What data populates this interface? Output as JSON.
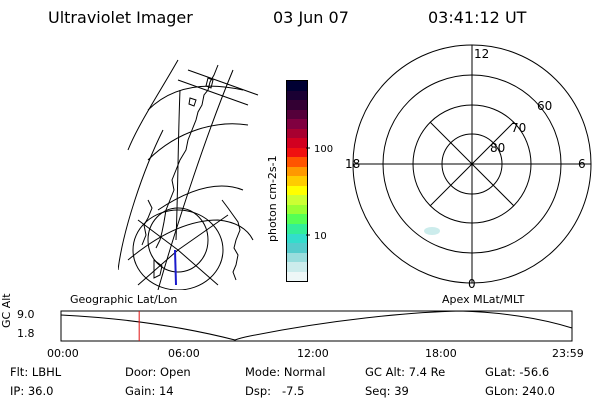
{
  "header": {
    "instrument": "Ultraviolet Imager",
    "date": "03 Jun 07",
    "time": "03:41:12 UT"
  },
  "colorbar": {
    "unit_label": "photon cm-2s-1",
    "ticks": [
      "100",
      "10"
    ],
    "colors": [
      "#000033",
      "#1a0033",
      "#330033",
      "#55003a",
      "#800040",
      "#a80030",
      "#d20020",
      "#f01010",
      "#ff5500",
      "#ff9900",
      "#ffcc00",
      "#ffff00",
      "#ccff33",
      "#99ff33",
      "#55ff55",
      "#33ee99",
      "#33ddcc",
      "#55cccc",
      "#99dddd",
      "#ccecec",
      "#eef7f7"
    ]
  },
  "polar": {
    "mlt_labels": {
      "top": "12",
      "left": "18",
      "right": "6",
      "bottom": "0"
    },
    "lat_labels": [
      "60",
      "70",
      "80"
    ]
  },
  "timeline": {
    "left_title": "Geographic Lat/Lon",
    "right_title": "Apex MLat/MLT",
    "y_axis_label": "GC Alt",
    "y_ticks": [
      "9.0",
      "1.8"
    ],
    "x_ticks": [
      "00:00",
      "06:00",
      "12:00",
      "18:00",
      "23:59"
    ],
    "current_time_fraction": 0.153
  },
  "info": {
    "flt": "Flt: LBHL",
    "door": "Door: Open",
    "mode": "Mode: Normal",
    "gc_alt": "GC Alt: 7.4 Re",
    "glat": "GLat: -56.6",
    "ip": "IP: 36.0",
    "gain": "Gain: 14",
    "dsp": "Dsp:   -7.5",
    "seq": "Seq: 39",
    "glon": "GLon: 240.0"
  }
}
